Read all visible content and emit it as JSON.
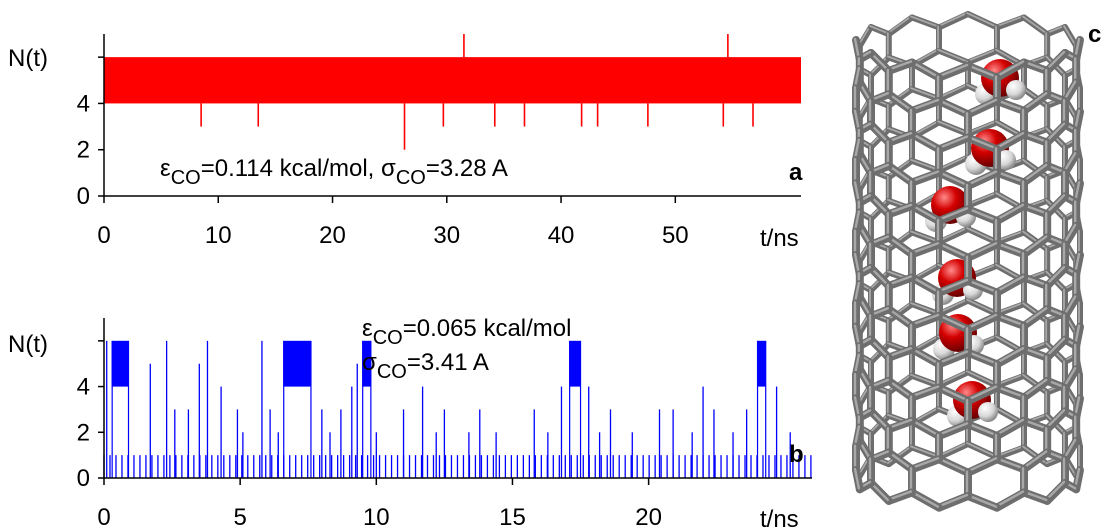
{
  "chart_data": [
    {
      "type": "line",
      "panel_label": "a",
      "ylabel": "N(t)",
      "xlabel": "t/ns",
      "xlim": [
        0,
        61
      ],
      "ylim": [
        0,
        7
      ],
      "xticks": [
        "0",
        "10",
        "20",
        "30",
        "40",
        "50"
      ],
      "yticks": [
        "0",
        "2",
        "4"
      ],
      "annotation": {
        "eps_symbol": "ε",
        "eps_sub": "CO",
        "eps_value": "=0.114 kcal/mol, ",
        "sig_symbol": "σ",
        "sig_sub": "CO",
        "sig_value": "=3.28 A"
      },
      "series": [
        {
          "color": "#ff0000",
          "band": {
            "x": [
              0,
              61
            ],
            "y": [
              4,
              6
            ]
          },
          "spikes_down": [
            {
              "x": 1.7,
              "y": 4
            },
            {
              "x": 8.5,
              "y": 3
            },
            {
              "x": 13.5,
              "y": 3
            },
            {
              "x": 18.0,
              "y": 4
            },
            {
              "x": 26.3,
              "y": 2
            },
            {
              "x": 29.7,
              "y": 3
            },
            {
              "x": 34.2,
              "y": 3
            },
            {
              "x": 36.8,
              "y": 3
            },
            {
              "x": 40.5,
              "y": 4
            },
            {
              "x": 41.8,
              "y": 3
            },
            {
              "x": 43.2,
              "y": 3
            },
            {
              "x": 47.6,
              "y": 3
            },
            {
              "x": 54.2,
              "y": 3
            },
            {
              "x": 56.8,
              "y": 3
            },
            {
              "x": 58.3,
              "y": 4
            },
            {
              "x": 60.2,
              "y": 4
            }
          ],
          "spikes_up": [
            {
              "x": 31.5,
              "y": 7
            },
            {
              "x": 54.6,
              "y": 7
            }
          ]
        }
      ]
    },
    {
      "type": "line",
      "panel_label": "b",
      "ylabel": "N(t)",
      "xlabel": "t/ns",
      "xlim": [
        0,
        26
      ],
      "ylim": [
        0,
        7
      ],
      "xticks": [
        "0",
        "5",
        "10",
        "15",
        "20"
      ],
      "yticks": [
        "0",
        "2",
        "4"
      ],
      "annotation": {
        "eps_symbol": "ε",
        "eps_sub": "CO",
        "eps_value": "=0.065 kcal/mol",
        "sig_symbol": "σ",
        "sig_sub": "CO",
        "sig_value": "=3.41 A"
      },
      "series": [
        {
          "color": "#0000ff",
          "baseline": 1,
          "x_end": 26,
          "high_intervals": [
            {
              "x": [
                0.3,
                0.9
              ],
              "y": 6
            },
            {
              "x": [
                6.6,
                7.6
              ],
              "y": 6
            },
            {
              "x": [
                9.5,
                9.8
              ],
              "y": 6
            },
            {
              "x": [
                17.1,
                17.5
              ],
              "y": 6
            },
            {
              "x": [
                24.0,
                24.3
              ],
              "y": 6
            }
          ],
          "spikes": [
            {
              "x": 0.1,
              "y": 6
            },
            {
              "x": 1.7,
              "y": 5
            },
            {
              "x": 2.3,
              "y": 6
            },
            {
              "x": 2.6,
              "y": 3
            },
            {
              "x": 3.1,
              "y": 3
            },
            {
              "x": 3.5,
              "y": 5
            },
            {
              "x": 3.8,
              "y": 6
            },
            {
              "x": 4.3,
              "y": 4
            },
            {
              "x": 4.9,
              "y": 3
            },
            {
              "x": 5.1,
              "y": 2
            },
            {
              "x": 5.8,
              "y": 6
            },
            {
              "x": 6.1,
              "y": 3
            },
            {
              "x": 6.4,
              "y": 2
            },
            {
              "x": 8.0,
              "y": 3
            },
            {
              "x": 8.3,
              "y": 2
            },
            {
              "x": 8.7,
              "y": 3
            },
            {
              "x": 9.1,
              "y": 4
            },
            {
              "x": 9.3,
              "y": 5
            },
            {
              "x": 10.0,
              "y": 2
            },
            {
              "x": 11.0,
              "y": 3
            },
            {
              "x": 11.7,
              "y": 4
            },
            {
              "x": 12.2,
              "y": 2
            },
            {
              "x": 12.5,
              "y": 3
            },
            {
              "x": 13.4,
              "y": 2
            },
            {
              "x": 13.8,
              "y": 3
            },
            {
              "x": 14.4,
              "y": 2
            },
            {
              "x": 15.8,
              "y": 3
            },
            {
              "x": 16.3,
              "y": 2
            },
            {
              "x": 16.8,
              "y": 4
            },
            {
              "x": 17.8,
              "y": 4
            },
            {
              "x": 18.2,
              "y": 2
            },
            {
              "x": 18.6,
              "y": 3
            },
            {
              "x": 19.4,
              "y": 2
            },
            {
              "x": 20.4,
              "y": 3
            },
            {
              "x": 20.9,
              "y": 3
            },
            {
              "x": 21.6,
              "y": 2
            },
            {
              "x": 22.0,
              "y": 4
            },
            {
              "x": 22.4,
              "y": 3
            },
            {
              "x": 23.1,
              "y": 2
            },
            {
              "x": 23.6,
              "y": 3
            },
            {
              "x": 24.7,
              "y": 4
            },
            {
              "x": 25.2,
              "y": 2
            }
          ]
        }
      ]
    }
  ],
  "illustration": {
    "panel_label": "c",
    "colors": {
      "tube": "#6e6e6e",
      "tube_highlight": "#a8a8a8",
      "oxygen": "#d40000",
      "hydrogen": "#e8e8e8"
    },
    "water_molecule_count": 6
  }
}
